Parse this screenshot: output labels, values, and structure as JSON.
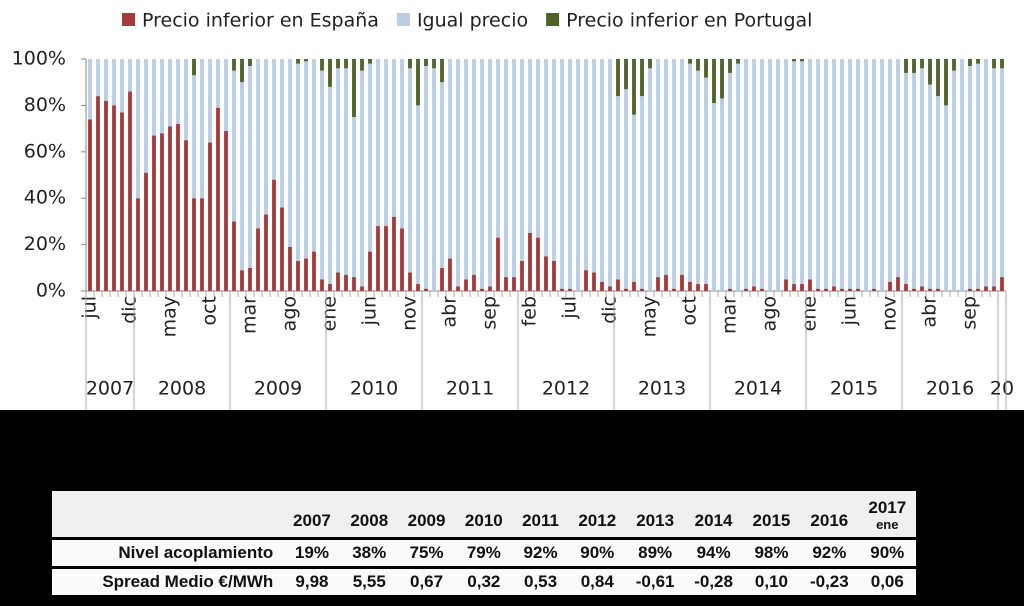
{
  "chart_data": {
    "type": "stacked-bar",
    "series": [
      {
        "name": "Precio inferior en España",
        "color": "#a33b3a",
        "values": [
          74,
          84,
          82,
          80,
          77,
          86,
          40,
          51,
          67,
          68,
          71,
          72,
          65,
          40,
          40,
          64,
          79,
          69,
          30,
          9,
          10,
          27,
          33,
          48,
          36,
          19,
          13,
          14,
          17,
          5,
          3,
          8,
          7,
          6,
          2,
          17,
          28,
          28,
          32,
          27,
          8,
          3,
          1,
          0,
          10,
          14,
          2,
          5,
          7,
          1,
          2,
          23,
          6,
          6,
          13,
          25,
          23,
          15,
          13,
          1,
          1,
          0,
          9,
          8,
          4,
          2,
          5,
          1,
          4,
          1,
          0,
          6,
          7,
          1,
          7,
          4,
          3,
          3,
          0,
          0,
          1,
          0,
          1,
          2,
          1,
          0,
          0,
          5,
          3,
          3,
          5,
          1,
          1,
          2,
          1,
          1,
          1,
          0,
          1,
          0,
          4,
          6,
          3,
          1,
          2,
          1,
          1,
          0,
          0,
          0,
          1,
          1,
          2,
          2,
          6
        ]
      },
      {
        "name": "Igual precio",
        "color": "#b9cde5",
        "values": [
          26,
          16,
          18,
          20,
          23,
          14,
          60,
          49,
          33,
          32,
          29,
          28,
          35,
          53,
          60,
          36,
          21,
          31,
          65,
          81,
          87,
          73,
          67,
          52,
          64,
          81,
          85,
          85,
          83,
          90,
          85,
          88,
          89,
          69,
          93,
          81,
          72,
          72,
          68,
          73,
          88,
          77,
          96,
          96,
          80,
          86,
          98,
          95,
          93,
          99,
          98,
          77,
          94,
          94,
          87,
          75,
          77,
          85,
          87,
          99,
          99,
          100,
          91,
          92,
          96,
          98,
          79,
          86,
          72,
          83,
          96,
          94,
          93,
          99,
          93,
          94,
          92,
          89,
          81,
          83,
          93,
          98,
          99,
          98,
          99,
          100,
          100,
          95,
          96,
          96,
          95,
          99,
          99,
          98,
          99,
          99,
          99,
          100,
          99,
          100,
          96,
          94,
          91,
          93,
          94,
          88,
          83,
          80,
          95,
          100,
          96,
          97,
          98,
          94,
          90
        ]
      },
      {
        "name": "Precio inferior en Portugal",
        "color": "#4f6228",
        "values": [
          0,
          0,
          0,
          0,
          0,
          0,
          0,
          0,
          0,
          0,
          0,
          0,
          0,
          7,
          0,
          0,
          0,
          0,
          5,
          10,
          3,
          0,
          0,
          0,
          0,
          0,
          2,
          1,
          0,
          5,
          12,
          4,
          4,
          25,
          5,
          2,
          0,
          0,
          0,
          0,
          4,
          20,
          3,
          4,
          10,
          0,
          0,
          0,
          0,
          0,
          0,
          0,
          0,
          0,
          0,
          0,
          0,
          0,
          0,
          0,
          0,
          0,
          0,
          0,
          0,
          0,
          16,
          13,
          24,
          16,
          4,
          0,
          0,
          0,
          0,
          2,
          5,
          8,
          19,
          17,
          6,
          2,
          0,
          0,
          0,
          0,
          0,
          0,
          1,
          1,
          0,
          0,
          0,
          0,
          0,
          0,
          0,
          0,
          0,
          0,
          0,
          0,
          6,
          6,
          4,
          11,
          16,
          20,
          5,
          0,
          3,
          2,
          0,
          4,
          4
        ]
      }
    ],
    "categories": [
      "jul",
      null,
      null,
      null,
      null,
      "dic",
      null,
      null,
      null,
      null,
      "may",
      null,
      null,
      null,
      null,
      "oct",
      null,
      null,
      null,
      null,
      "mar",
      null,
      null,
      null,
      null,
      "ago",
      null,
      null,
      null,
      null,
      "ene",
      null,
      null,
      null,
      null,
      "jun",
      null,
      null,
      null,
      null,
      "nov",
      null,
      null,
      null,
      null,
      "abr",
      null,
      null,
      null,
      null,
      "sep",
      null,
      null,
      null,
      null,
      "feb",
      null,
      null,
      null,
      null,
      "jul",
      null,
      null,
      null,
      null,
      "dic",
      null,
      null,
      null,
      null,
      "may",
      null,
      null,
      null,
      null,
      "oct",
      null,
      null,
      null,
      null,
      "mar",
      null,
      null,
      null,
      null,
      "ago",
      null,
      null,
      null,
      null,
      "ene",
      null,
      null,
      null,
      null,
      "jun",
      null,
      null,
      null,
      null,
      "nov",
      null,
      null,
      null,
      null,
      "abr",
      null,
      null,
      null,
      null,
      "sep",
      null,
      null,
      null,
      null
    ],
    "year_groups": [
      "2007",
      "2008",
      "2009",
      "2010",
      "2011",
      "2012",
      "2013",
      "2014",
      "2015",
      "2016",
      "20"
    ],
    "ylim": [
      0,
      100
    ],
    "yticks": [
      {
        "value": 0,
        "label": "0%"
      },
      {
        "value": 20,
        "label": "20%"
      },
      {
        "value": 40,
        "label": "40%"
      },
      {
        "value": 60,
        "label": "60%"
      },
      {
        "value": 80,
        "label": "80%"
      },
      {
        "value": 100,
        "label": "100%"
      }
    ]
  },
  "table": {
    "columns": [
      "2007",
      "2008",
      "2009",
      "2010",
      "2011",
      "2012",
      "2013",
      "2014",
      "2015",
      "2016",
      "2017"
    ],
    "column_note": "ene",
    "rows": [
      [
        "Nivel acoplamiento",
        "19%",
        "38%",
        "75%",
        "79%",
        "92%",
        "90%",
        "89%",
        "94%",
        "98%",
        "92%",
        "90%"
      ],
      [
        "Spread Medio €/MWh",
        "9,98",
        "5,55",
        "0,67",
        "0,32",
        "0,53",
        "0,84",
        "-0,61",
        "-0,28",
        "0,10",
        "-0,23",
        "0,06"
      ]
    ]
  }
}
